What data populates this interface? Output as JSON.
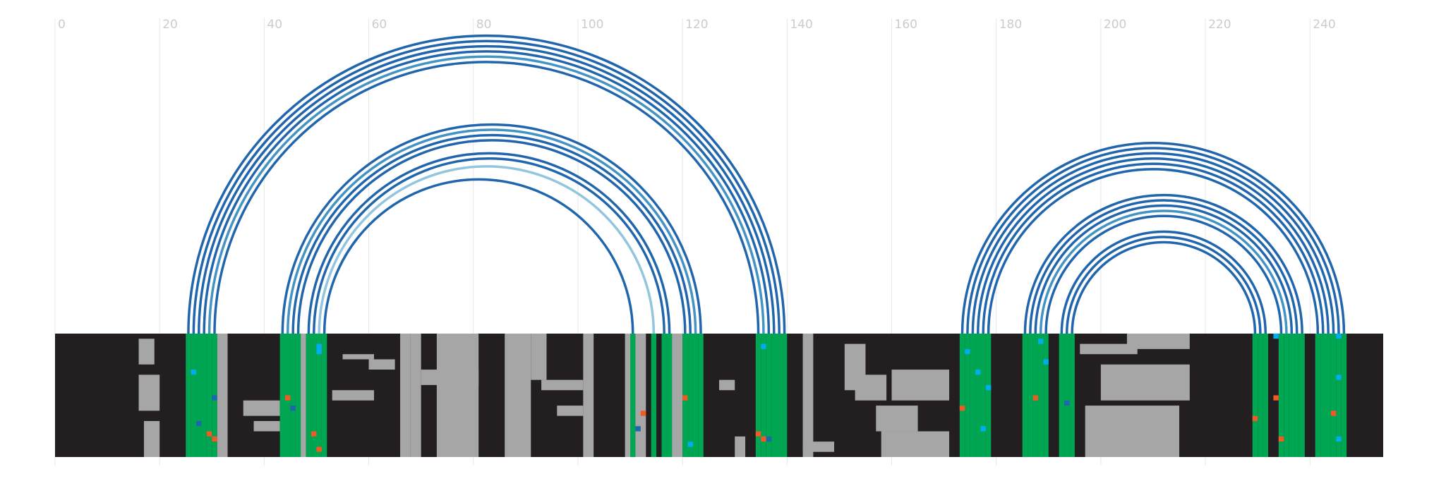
{
  "chart_data": {
    "type": "arc",
    "xlim": [
      0,
      254
    ],
    "xticks": [
      0,
      20,
      40,
      60,
      80,
      100,
      120,
      140,
      160,
      180,
      200,
      220,
      240
    ],
    "grid": true,
    "rows": 24,
    "colors": {
      "background": "#231f20",
      "gray": "#a6a6a6",
      "paired": "#00a651"
    },
    "pairs": [
      {
        "i": 25,
        "j": 139,
        "color": "#2166ac"
      },
      {
        "i": 26,
        "j": 138,
        "color": "#2166ac"
      },
      {
        "i": 27,
        "j": 137,
        "color": "#2166ac"
      },
      {
        "i": 28,
        "j": 136,
        "color": "#2166ac"
      },
      {
        "i": 29,
        "j": 135,
        "color": "#4393c3"
      },
      {
        "i": 30,
        "j": 134,
        "color": "#2166ac"
      },
      {
        "i": 43,
        "j": 123,
        "color": "#2166ac"
      },
      {
        "i": 44,
        "j": 122,
        "color": "#4393c3"
      },
      {
        "i": 45,
        "j": 121,
        "color": "#2166ac"
      },
      {
        "i": 46,
        "j": 120,
        "color": "#2166ac"
      },
      {
        "i": 48,
        "j": 117,
        "color": "#2166ac"
      },
      {
        "i": 49,
        "j": 116,
        "color": "#2166ac"
      },
      {
        "i": 50,
        "j": 114,
        "color": "#92c5de"
      },
      {
        "i": 51,
        "j": 110,
        "color": "#2166ac"
      },
      {
        "i": 173,
        "j": 246,
        "color": "#2166ac"
      },
      {
        "i": 174,
        "j": 245,
        "color": "#2166ac"
      },
      {
        "i": 175,
        "j": 244,
        "color": "#2166ac"
      },
      {
        "i": 176,
        "j": 243,
        "color": "#2166ac"
      },
      {
        "i": 177,
        "j": 242,
        "color": "#2166ac"
      },
      {
        "i": 178,
        "j": 241,
        "color": "#2166ac"
      },
      {
        "i": 185,
        "j": 238,
        "color": "#2166ac"
      },
      {
        "i": 186,
        "j": 237,
        "color": "#2166ac"
      },
      {
        "i": 187,
        "j": 236,
        "color": "#2166ac"
      },
      {
        "i": 188,
        "j": 235,
        "color": "#4393c3"
      },
      {
        "i": 189,
        "j": 234,
        "color": "#2166ac"
      },
      {
        "i": 192,
        "j": 231,
        "color": "#2166ac"
      },
      {
        "i": 193,
        "j": 230,
        "color": "#2166ac"
      },
      {
        "i": 194,
        "j": 229,
        "color": "#2166ac"
      }
    ],
    "gray": [
      [
        16,
        18,
        1,
        5
      ],
      [
        16,
        19,
        8,
        14
      ],
      [
        17,
        19,
        17,
        23
      ],
      [
        31,
        32,
        0,
        23
      ],
      [
        36,
        42,
        13,
        15
      ],
      [
        38,
        42,
        17,
        18
      ],
      [
        46,
        47,
        0,
        23
      ],
      [
        60,
        64,
        5,
        6
      ],
      [
        53,
        60,
        11,
        12
      ],
      [
        55,
        60,
        4,
        4
      ],
      [
        66,
        67,
        0,
        23
      ],
      [
        68,
        69,
        0,
        23
      ],
      [
        73,
        80,
        0,
        23
      ],
      [
        70,
        80,
        7,
        9
      ],
      [
        86,
        90,
        0,
        23
      ],
      [
        91,
        93,
        0,
        8
      ],
      [
        93,
        100,
        9,
        10
      ],
      [
        96,
        100,
        14,
        15
      ],
      [
        101,
        102,
        0,
        23
      ],
      [
        109,
        112,
        0,
        23
      ],
      [
        117,
        119,
        0,
        23
      ],
      [
        127,
        129,
        9,
        10
      ],
      [
        130,
        131,
        20,
        23
      ],
      [
        143,
        144,
        0,
        23
      ],
      [
        143,
        148,
        21,
        22
      ],
      [
        151,
        154,
        2,
        10
      ],
      [
        153,
        158,
        8,
        12
      ],
      [
        157,
        164,
        14,
        18
      ],
      [
        158,
        170,
        19,
        23
      ],
      [
        160,
        170,
        7,
        12
      ],
      [
        196,
        206,
        2,
        3
      ],
      [
        200,
        216,
        6,
        12
      ],
      [
        197,
        214,
        14,
        23
      ],
      [
        205,
        216,
        0,
        2
      ]
    ],
    "cells": [
      [
        26,
        7,
        "#00aeef"
      ],
      [
        30,
        12,
        "#2166ac"
      ],
      [
        29,
        19,
        "#f15a24"
      ],
      [
        30,
        20,
        "#f15a24"
      ],
      [
        27,
        17,
        "#2166ac"
      ],
      [
        44,
        12,
        "#f15a24"
      ],
      [
        45,
        14,
        "#2166ac"
      ],
      [
        50,
        2,
        "#00aeef"
      ],
      [
        50,
        3,
        "#00aeef"
      ],
      [
        49,
        19,
        "#f15a24"
      ],
      [
        50,
        22,
        "#f15a24"
      ],
      [
        111,
        18,
        "#2166ac"
      ],
      [
        112,
        15,
        "#f15a24"
      ],
      [
        120,
        12,
        "#f15a24"
      ],
      [
        121,
        21,
        "#00aeef"
      ],
      [
        135,
        2,
        "#00aeef"
      ],
      [
        134,
        19,
        "#f15a24"
      ],
      [
        135,
        20,
        "#f15a24"
      ],
      [
        136,
        20,
        "#2166ac"
      ],
      [
        174,
        3,
        "#00aeef"
      ],
      [
        176,
        7,
        "#00aeef"
      ],
      [
        178,
        10,
        "#00aeef"
      ],
      [
        173,
        14,
        "#f15a24"
      ],
      [
        177,
        18,
        "#00aeef"
      ],
      [
        187,
        12,
        "#f15a24"
      ],
      [
        188,
        1,
        "#00aeef"
      ],
      [
        189,
        5,
        "#00aeef"
      ],
      [
        193,
        13,
        "#2166ac"
      ],
      [
        229,
        16,
        "#f15a24"
      ],
      [
        233,
        0,
        "#00aeef"
      ],
      [
        233,
        12,
        "#f15a24"
      ],
      [
        234,
        20,
        "#f15a24"
      ],
      [
        245,
        0,
        "#00aeef"
      ],
      [
        245,
        8,
        "#00aeef"
      ],
      [
        244,
        15,
        "#f15a24"
      ],
      [
        245,
        20,
        "#00aeef"
      ]
    ]
  }
}
